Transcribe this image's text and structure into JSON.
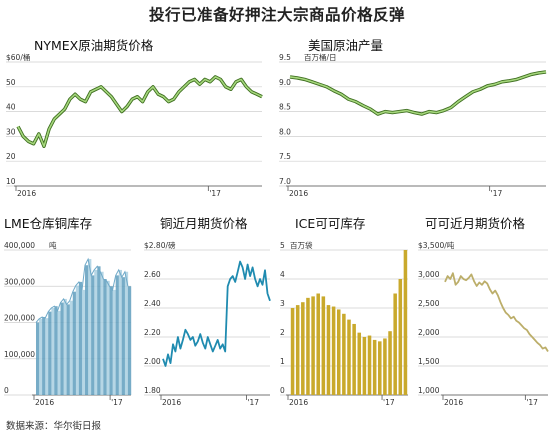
{
  "title": "投行已准备好押注大宗商品价格反弹",
  "source": "数据来源：华尔街日报",
  "colors": {
    "green": "#7ab648",
    "blue_line": "#1f8bb0",
    "blue_bar": "#a9cfe0",
    "blue_bar_dark": "#5f9dbd",
    "ice_bar": "#c9a92c",
    "tan": "#bcae6a"
  },
  "chart_data": [
    {
      "id": "nymex",
      "type": "line",
      "title": "NYMEX原油期货价格",
      "unit": "$60/桶",
      "yticks": [
        "$60/桶",
        "50",
        "40",
        "30",
        "20",
        "10"
      ],
      "xticks": [
        "2016",
        "'17"
      ],
      "ylim": [
        10,
        60
      ],
      "series": [
        {
          "values": [
            34,
            30,
            28,
            27,
            31,
            26,
            33,
            37,
            39,
            41,
            45,
            47,
            45,
            44,
            48,
            49,
            50,
            48,
            46,
            43,
            40,
            42,
            45,
            46,
            44,
            48,
            50,
            47,
            46,
            44,
            45,
            48,
            50,
            52,
            53,
            51,
            53,
            52,
            54,
            53,
            50,
            49,
            52,
            53,
            50,
            48,
            47,
            46
          ]
        }
      ]
    },
    {
      "id": "us-output",
      "type": "line",
      "title": "美国原油产量",
      "unit": "百万桶/日",
      "yticks": [
        "9.5",
        "9.0",
        "8.5",
        "8.0",
        "7.5",
        "7.0"
      ],
      "xticks": [
        "2016",
        "'17"
      ],
      "ylim": [
        7.0,
        9.5
      ],
      "series": [
        {
          "values": [
            9.2,
            9.18,
            9.15,
            9.1,
            9.05,
            9.0,
            8.92,
            8.85,
            8.75,
            8.7,
            8.62,
            8.55,
            8.45,
            8.5,
            8.48,
            8.5,
            8.52,
            8.48,
            8.45,
            8.5,
            8.48,
            8.52,
            8.58,
            8.7,
            8.8,
            8.9,
            8.95,
            9.02,
            9.05,
            9.1,
            9.12,
            9.15,
            9.2,
            9.25,
            9.28,
            9.3
          ]
        }
      ]
    },
    {
      "id": "lme-stocks",
      "type": "area",
      "title": "LME仓库铜库存",
      "unit": "吨",
      "yticks": [
        "400,000",
        "300,000",
        "200,000",
        "100,000",
        "0"
      ],
      "xticks": [
        "2016",
        "'17"
      ],
      "ylim": [
        0,
        400000
      ],
      "series": [
        {
          "values": [
            200000,
            210000,
            215000,
            212000,
            230000,
            240000,
            245000,
            232000,
            255000,
            265000,
            250000,
            260000,
            285000,
            302000,
            312000,
            290000,
            358000,
            375000,
            330000,
            345000,
            355000,
            340000,
            320000,
            315000,
            300000,
            290000,
            330000,
            345000,
            325000,
            340000,
            300000
          ]
        }
      ]
    },
    {
      "id": "copper-futures",
      "type": "line",
      "title": "铜近月期货价格",
      "unit": "$2.80/磅",
      "yticks": [
        "$2.80/磅",
        "2.60",
        "2.40",
        "2.20",
        "2.00",
        "1.80"
      ],
      "xticks": [
        "2016",
        "'17"
      ],
      "ylim": [
        1.8,
        2.8
      ],
      "series": [
        {
          "values": [
            2.05,
            2.0,
            2.08,
            2.02,
            2.15,
            2.1,
            2.2,
            2.12,
            2.18,
            2.25,
            2.22,
            2.18,
            2.2,
            2.14,
            2.17,
            2.22,
            2.16,
            2.12,
            2.2,
            2.15,
            2.1,
            2.14,
            2.18,
            2.12,
            2.15,
            2.1,
            2.55,
            2.6,
            2.62,
            2.58,
            2.65,
            2.72,
            2.68,
            2.6,
            2.7,
            2.62,
            2.68,
            2.6,
            2.55,
            2.6,
            2.56,
            2.66,
            2.5,
            2.45
          ]
        }
      ]
    },
    {
      "id": "ice-stocks",
      "type": "bar",
      "title": "ICE可可库存",
      "unit": "百万袋",
      "yticks": [
        "5",
        "4",
        "3",
        "2",
        "1",
        "0"
      ],
      "xticks": [
        "2016",
        "'17"
      ],
      "ylim": [
        0,
        5
      ],
      "series": [
        {
          "values": [
            3.0,
            3.1,
            3.2,
            3.35,
            3.4,
            3.5,
            3.4,
            3.1,
            3.05,
            2.95,
            2.8,
            2.6,
            2.45,
            2.15,
            2.0,
            2.05,
            1.9,
            1.85,
            1.95,
            2.2,
            3.5,
            4.0,
            5.0
          ]
        }
      ]
    },
    {
      "id": "cocoa-futures",
      "type": "line",
      "title": "可可近月期货价格",
      "unit": "$3,500/吨",
      "yticks": [
        "$3,500/吨",
        "3,000",
        "2,500",
        "2,000",
        "1,500",
        "1,000"
      ],
      "xticks": [
        "2016",
        "'17"
      ],
      "ylim": [
        1000,
        3500
      ],
      "series": [
        {
          "values": [
            2950,
            3050,
            3000,
            3100,
            2900,
            2950,
            3050,
            3000,
            2980,
            3020,
            3080,
            2960,
            2880,
            2940,
            2900,
            2960,
            2920,
            2820,
            2750,
            2800,
            2720,
            2600,
            2500,
            2420,
            2380,
            2320,
            2350,
            2280,
            2250,
            2200,
            2150,
            2120,
            2050,
            2000,
            1950,
            1900,
            1860,
            1800,
            1820,
            1750
          ]
        }
      ]
    }
  ]
}
